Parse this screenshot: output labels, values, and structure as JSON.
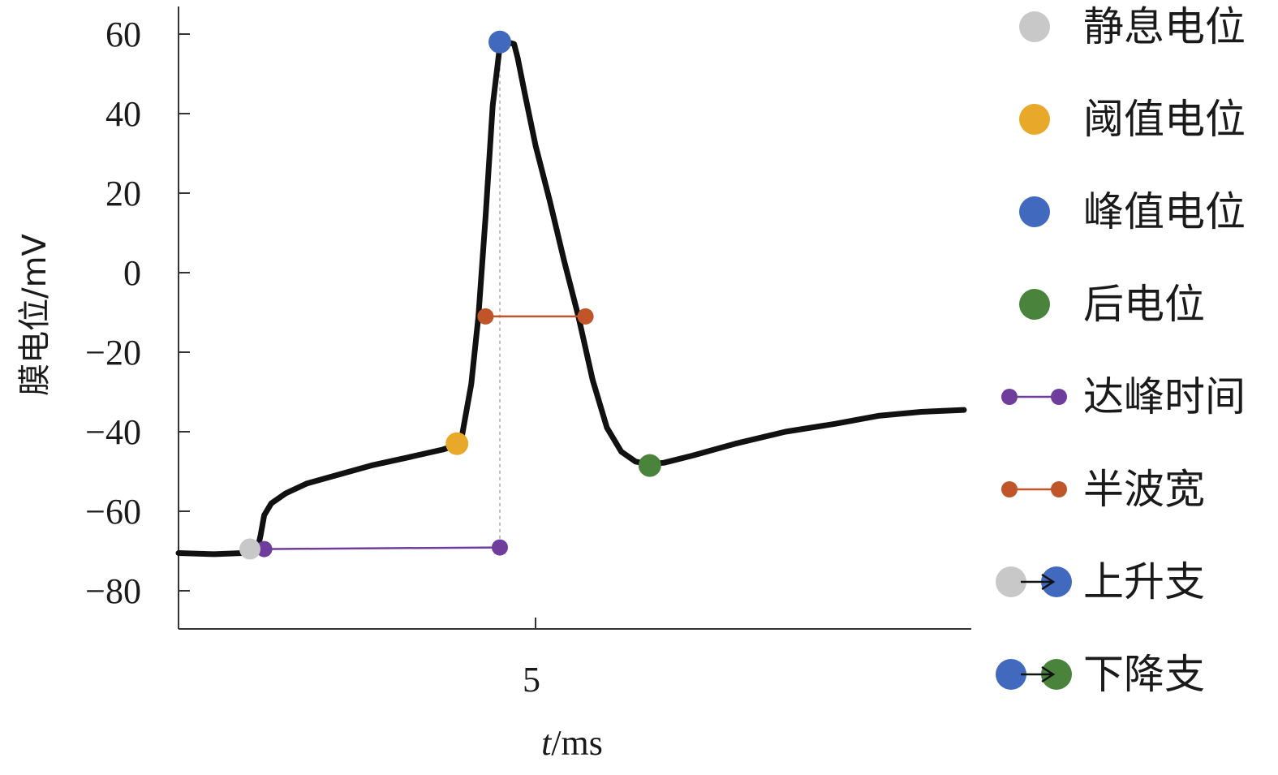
{
  "chart_data": {
    "type": "line",
    "title": "",
    "xlabel_italic": "t",
    "xlabel_rest": "/ms",
    "ylabel": "膜电位/mV",
    "xlim": [
      0,
      11
    ],
    "ylim": [
      -90,
      68
    ],
    "x_ticks": [
      5
    ],
    "x_tick_labels": [
      "5"
    ],
    "y_ticks": [
      60,
      40,
      20,
      0,
      -20,
      -40,
      -60,
      -80
    ],
    "y_tick_labels": [
      "60",
      "40",
      "20",
      "0",
      "−20",
      "−40",
      "−60",
      "−80"
    ],
    "grid": false,
    "legend_position": "right",
    "series": [
      {
        "x": [
          0,
          0.5,
          0.9,
          1.1,
          1.15,
          1.2,
          1.3,
          1.5,
          1.8,
          2.2,
          2.7,
          3.2,
          3.7,
          3.95,
          4.0,
          4.1,
          4.2,
          4.3,
          4.4,
          4.5,
          4.6,
          4.7,
          4.75,
          4.85,
          5.0,
          5.2,
          5.4,
          5.6,
          5.8,
          6.0,
          6.2,
          6.4,
          6.6,
          6.8,
          7.2,
          7.8,
          8.5,
          9.2,
          9.8,
          10.4,
          11.0
        ],
        "y": [
          -70.5,
          -70.8,
          -70.5,
          -70,
          -66,
          -61,
          -58,
          -55.5,
          -53,
          -51,
          -48.5,
          -46.5,
          -44.5,
          -43,
          -38,
          -28,
          -11,
          14,
          42,
          57,
          58,
          57.5,
          54,
          45,
          32,
          18,
          3,
          -11,
          -27,
          -39,
          -45,
          -47.5,
          -48.2,
          -47.8,
          -46,
          -43,
          -40,
          -38,
          -36,
          -35,
          -34.5
        ],
        "color": "#111111"
      }
    ],
    "markers": {
      "resting": {
        "x": 1.0,
        "y": -69.5,
        "color": "#c8c8c8"
      },
      "threshold": {
        "x": 3.9,
        "y": -43,
        "color": "#e8a92b"
      },
      "peak": {
        "x": 4.5,
        "y": 58,
        "color": "#4169be"
      },
      "after": {
        "x": 6.6,
        "y": -48.5,
        "color": "#4a833c"
      }
    },
    "time_to_peak": {
      "x1": 1.2,
      "x2": 4.5,
      "y": -69.3,
      "color": "#6f3d9c"
    },
    "half_width": {
      "x1": 4.3,
      "x2": 5.7,
      "y": -11,
      "color": "#c0552a"
    },
    "peak_dashed_line": {
      "x": 4.5,
      "y_top": 58,
      "y_bottom": -69.3,
      "color": "#aaaaaa"
    },
    "legend": [
      {
        "label": "静息电位",
        "kind": "dot",
        "color": "#c8c8c8"
      },
      {
        "label": "阈值电位",
        "kind": "dot",
        "color": "#e8a92b"
      },
      {
        "label": "峰值电位",
        "kind": "dot",
        "color": "#4169be"
      },
      {
        "label": "后电位",
        "kind": "dot",
        "color": "#4a833c"
      },
      {
        "label": "达峰时间",
        "kind": "segment",
        "color": "#6f3d9c"
      },
      {
        "label": "半波宽",
        "kind": "segment",
        "color": "#c0552a"
      },
      {
        "label": "上升支",
        "kind": "arrow",
        "from_color": "#c8c8c8",
        "to_color": "#4169be"
      },
      {
        "label": "下降支",
        "kind": "arrow",
        "from_color": "#4169be",
        "to_color": "#4a833c"
      }
    ]
  }
}
